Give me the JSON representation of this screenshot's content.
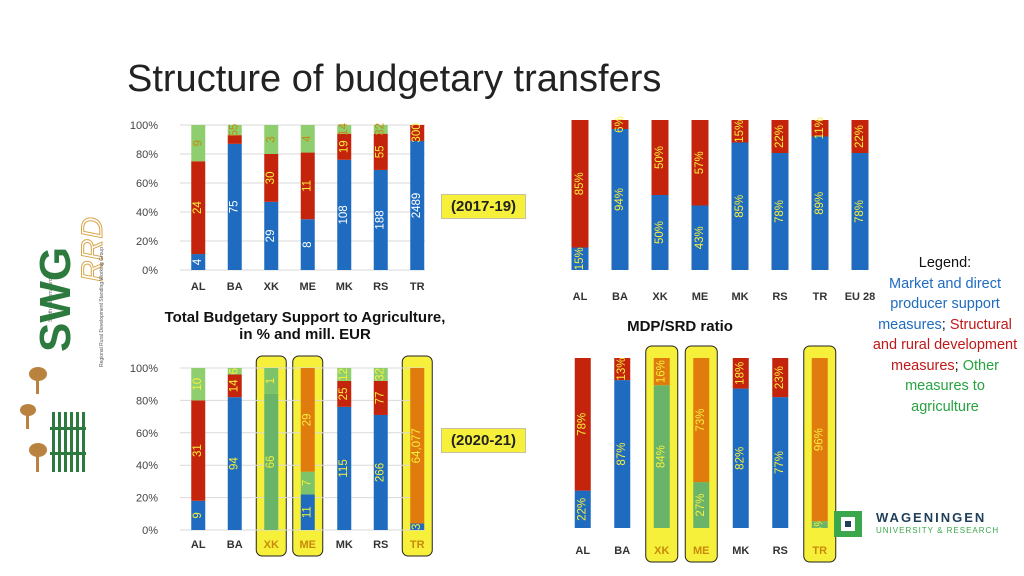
{
  "title": "Structure of budgetary transfers",
  "captions": {
    "total_line1": "Total Budgetary Support to Agriculture,",
    "total_line2": "in % and mill. EUR",
    "ratio": "MDP/SRD ratio"
  },
  "periods": {
    "p1": "(2017-19)",
    "p2": "(2020-21)"
  },
  "legend": {
    "heading": "Legend:",
    "blue_text": "Market and direct producer support measures",
    "sep1": ";",
    "red_text": "Structural and rural development measures",
    "sep2": ";",
    "green_text": "Other measures to agriculture"
  },
  "logos": {
    "wur_title": "WAGENINGEN",
    "wur_sub": "UNIVERSITY & RESEARCH",
    "swg_top": "South Eastern Europe",
    "swg_side": "Regional Rural Development Standing Working Group",
    "swg_mark": "SWG",
    "swg_rrd": "RRD"
  },
  "colors": {
    "blue": "#1f6bbf",
    "red": "#c4240c",
    "green": "#8fce6e",
    "green_dark": "#2aa84a",
    "orange": "#e07b0d",
    "highlight": "#f6f03a"
  },
  "chart_data": [
    {
      "type": "bar",
      "stacked": true,
      "percent": true,
      "period": "2017-19",
      "categories": [
        "AL",
        "BA",
        "XK",
        "ME",
        "MK",
        "RS",
        "TR"
      ],
      "yticks": [
        "0%",
        "20%",
        "40%",
        "60%",
        "80%",
        "100%"
      ],
      "series": [
        {
          "color": "blue",
          "pct": [
            11,
            87,
            47,
            35,
            76,
            69,
            89
          ],
          "labels": [
            "4",
            "75",
            "29",
            "8",
            "108",
            "188",
            "2489"
          ]
        },
        {
          "color": "red",
          "pct": [
            64,
            6,
            33,
            46,
            18,
            25,
            11
          ],
          "labels": [
            "24",
            "",
            "30",
            "11",
            "19",
            "55",
            "300"
          ]
        },
        {
          "color": "green",
          "pct": [
            25,
            7,
            20,
            19,
            6,
            6,
            0
          ],
          "labels": [
            "9",
            "55",
            "3",
            "4",
            "14",
            "32",
            ""
          ]
        }
      ]
    },
    {
      "type": "bar",
      "stacked": true,
      "percent": true,
      "period": "2017-19",
      "categories": [
        "AL",
        "BA",
        "XK",
        "ME",
        "MK",
        "RS",
        "TR",
        "EU 28"
      ],
      "series": [
        {
          "color": "blue",
          "pct": [
            15,
            94,
            50,
            43,
            85,
            78,
            89,
            78
          ],
          "labels": [
            "15%",
            "94%",
            "50%",
            "43%",
            "85%",
            "78%",
            "89%",
            "78%"
          ]
        },
        {
          "color": "red",
          "pct": [
            85,
            6,
            50,
            57,
            15,
            22,
            11,
            22
          ],
          "labels": [
            "85%",
            "6%",
            "50%",
            "57%",
            "15%",
            "22%",
            "11%",
            "22%"
          ]
        }
      ]
    },
    {
      "type": "bar",
      "stacked": true,
      "percent": true,
      "period": "2020-21",
      "categories": [
        "AL",
        "BA",
        "XK",
        "ME",
        "MK",
        "RS",
        "TR"
      ],
      "highlighted": [
        "XK",
        "ME",
        "TR"
      ],
      "yticks": [
        "0%",
        "20%",
        "40%",
        "60%",
        "80%",
        "100%"
      ],
      "series": [
        {
          "color": "blue",
          "pct": [
            18,
            82,
            84,
            22,
            76,
            71,
            4
          ],
          "labels": [
            "9",
            "94",
            "66",
            "11",
            "115",
            "266",
            "3"
          ]
        },
        {
          "color": "red",
          "pct": [
            62,
            14,
            0,
            0,
            16,
            21,
            0
          ],
          "labels": [
            "31",
            "14",
            "",
            "",
            "25",
            "77",
            ""
          ]
        },
        {
          "color": "green",
          "pct": [
            20,
            4,
            16,
            14,
            8,
            8,
            0
          ],
          "labels": [
            "10",
            "6",
            "1",
            "7",
            "12",
            "32",
            ""
          ]
        },
        {
          "color": "orange",
          "pct": [
            0,
            0,
            0,
            64,
            0,
            0,
            96
          ],
          "labels": [
            "",
            "",
            "",
            "29",
            "",
            "",
            "64,077"
          ]
        }
      ]
    },
    {
      "type": "bar",
      "stacked": true,
      "percent": true,
      "period": "2020-21",
      "categories": [
        "AL",
        "BA",
        "XK",
        "ME",
        "MK",
        "RS",
        "TR"
      ],
      "highlighted": [
        "XK",
        "ME",
        "TR"
      ],
      "series": [
        {
          "color": "blue",
          "pct": [
            22,
            87,
            84,
            27,
            82,
            77,
            4
          ],
          "labels": [
            "22%",
            "87%",
            "84%",
            "27%",
            "82%",
            "77%",
            "4%"
          ]
        },
        {
          "color": "red",
          "pct": [
            78,
            13,
            16,
            73,
            18,
            23,
            96
          ],
          "labels": [
            "78%",
            "13%",
            "16%",
            "73%",
            "18%",
            "23%",
            "96%"
          ]
        }
      ]
    }
  ]
}
